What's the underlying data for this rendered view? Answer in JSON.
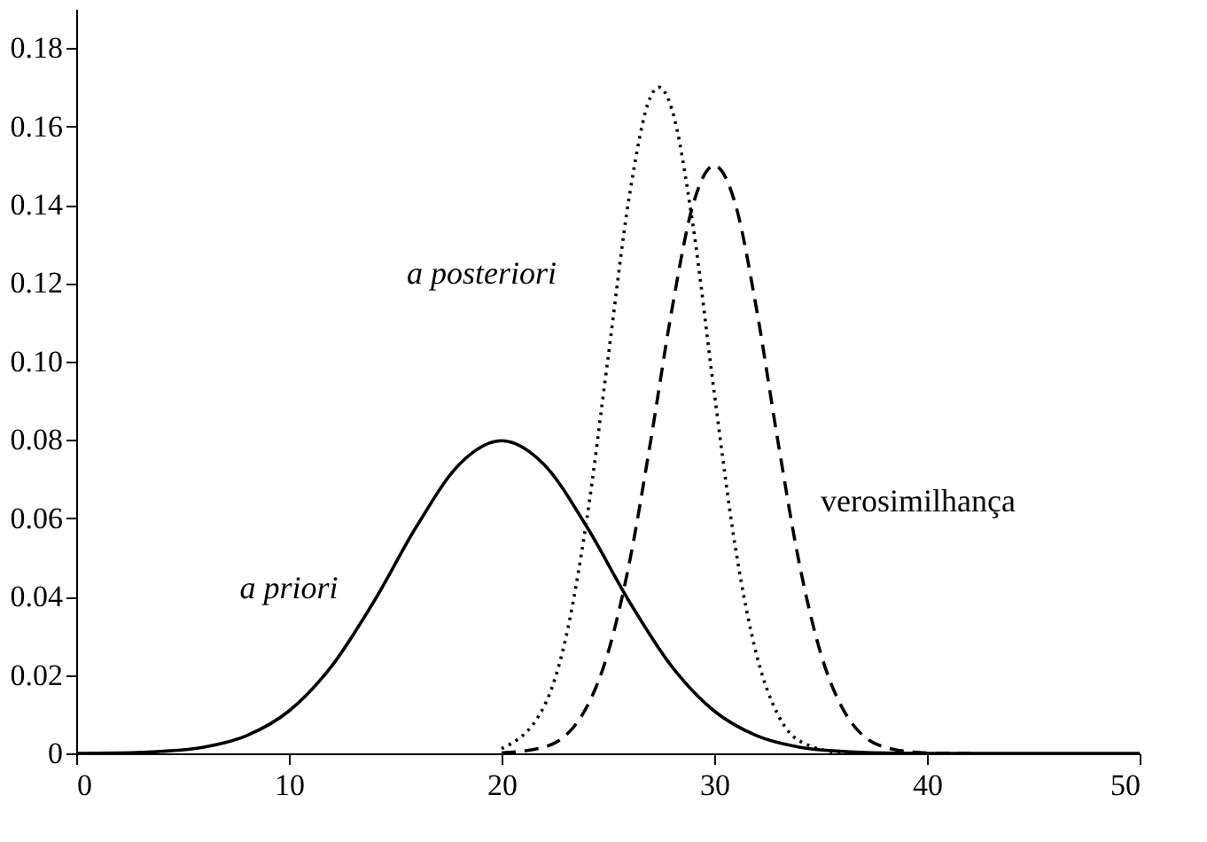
{
  "chart_data": {
    "type": "line",
    "xlim": [
      0,
      50
    ],
    "ylim": [
      0,
      0.19
    ],
    "xticks": [
      0,
      10,
      20,
      30,
      40,
      50
    ],
    "yticks": [
      0,
      0.02,
      0.04,
      0.06,
      0.08,
      {
        "value": 0.1,
        "label": "0.10"
      },
      0.12,
      0.14,
      0.16,
      0.18
    ],
    "grid": false,
    "marker": "none",
    "series": [
      {
        "name": "a priori",
        "color": "#000000",
        "line_style": "solid",
        "x": [
          0,
          2,
          4,
          6,
          8,
          10,
          12,
          14,
          16,
          18,
          20,
          22,
          24,
          26,
          28,
          30,
          32,
          34,
          36,
          38,
          40,
          50
        ],
        "values": [
          0.0,
          0.0001,
          0.0005,
          0.0016,
          0.0045,
          0.0108,
          0.0222,
          0.0388,
          0.0579,
          0.0737,
          0.0798,
          0.0737,
          0.0579,
          0.0388,
          0.0222,
          0.0108,
          0.0045,
          0.0016,
          0.0005,
          0.0001,
          0.0,
          0.0
        ]
      },
      {
        "name": "a posteriori",
        "color": "#000000",
        "line_style": "dotted",
        "x": [
          20,
          22,
          23,
          24,
          25,
          26,
          27,
          27.4,
          28,
          29,
          30,
          31,
          32,
          33,
          34,
          36,
          38
        ],
        "values": [
          0.0012,
          0.012,
          0.029,
          0.0595,
          0.1007,
          0.142,
          0.1675,
          0.17,
          0.1645,
          0.1347,
          0.092,
          0.0523,
          0.0249,
          0.0098,
          0.0032,
          0.0002,
          0.0
        ]
      },
      {
        "name": "verosimilhança",
        "color": "#000000",
        "line_style": "dashed",
        "x": [
          20,
          22,
          24,
          25,
          26,
          27,
          28,
          29,
          30,
          31,
          32,
          33,
          34,
          35,
          36,
          38,
          40,
          42
        ],
        "values": [
          0.0001,
          0.0016,
          0.0118,
          0.0256,
          0.0484,
          0.0794,
          0.113,
          0.14,
          0.15,
          0.14,
          0.113,
          0.0794,
          0.0484,
          0.0256,
          0.0118,
          0.0016,
          0.0001,
          0.0
        ]
      }
    ]
  }
}
